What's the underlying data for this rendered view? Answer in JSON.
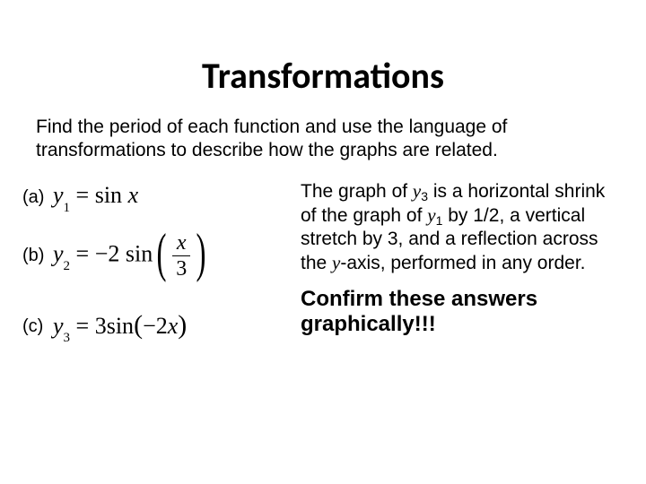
{
  "title": "Transformations",
  "instruction": "Find the period of each function and use the language of transformations to describe how the graphs are related.",
  "labels": {
    "a": "(a)",
    "b": "(b)",
    "c": "(c)"
  },
  "answer": {
    "p1a": "The graph of ",
    "y3": "y",
    "y3sub": "3",
    "p1b": " is a horizontal shrink of the graph of ",
    "y1": "y",
    "y1sub": "1",
    "p1c": " by 1/2, a vertical stretch by 3, and a reflection across the ",
    "yaxis": "y",
    "p1d": "-axis, performed in any order."
  },
  "confirm": {
    "l1": "Confirm these answers",
    "l2": "graphically!!!"
  }
}
